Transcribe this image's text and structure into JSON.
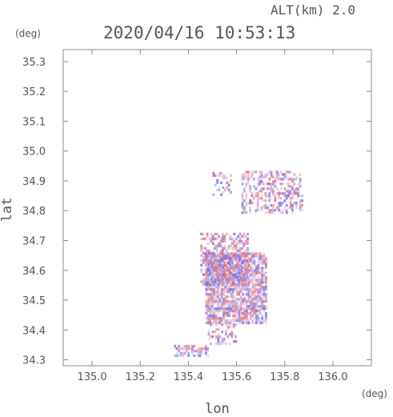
{
  "chart_data": {
    "type": "heatmap",
    "title": "2020/04/16 10:53:13",
    "altitude_label": "ALT(km) 2.0",
    "xlabel": "lon",
    "ylabel": "lat",
    "x_unit": "(deg)",
    "y_unit": "(deg)",
    "xlim": [
      134.88,
      136.16
    ],
    "ylim": [
      34.28,
      35.34
    ],
    "x_ticks": [
      "135.0",
      "135.2",
      "135.4",
      "135.6",
      "135.8",
      "136.0"
    ],
    "y_ticks": [
      "34.3",
      "34.4",
      "34.5",
      "34.6",
      "34.7",
      "34.8",
      "34.9",
      "35.0",
      "35.1",
      "35.2",
      "35.3"
    ],
    "grid": false,
    "colors": {
      "positive": "#e8707a",
      "negative": "#6f6fe6",
      "axis": "#555555",
      "frame": "#888888"
    },
    "regions": [
      {
        "lon": [
          135.47,
          135.72
        ],
        "lat": [
          34.42,
          34.66
        ],
        "density": 0.85
      },
      {
        "lon": [
          135.45,
          135.65
        ],
        "lat": [
          34.55,
          34.72
        ],
        "density": 0.55
      },
      {
        "lon": [
          135.62,
          135.87
        ],
        "lat": [
          34.79,
          34.93
        ],
        "density": 0.45
      },
      {
        "lon": [
          135.5,
          135.58
        ],
        "lat": [
          34.85,
          34.93
        ],
        "density": 0.3
      },
      {
        "lon": [
          135.34,
          135.48
        ],
        "lat": [
          34.31,
          34.35
        ],
        "density": 0.6
      },
      {
        "lon": [
          135.48,
          135.6
        ],
        "lat": [
          34.35,
          34.42
        ],
        "density": 0.35
      }
    ]
  }
}
